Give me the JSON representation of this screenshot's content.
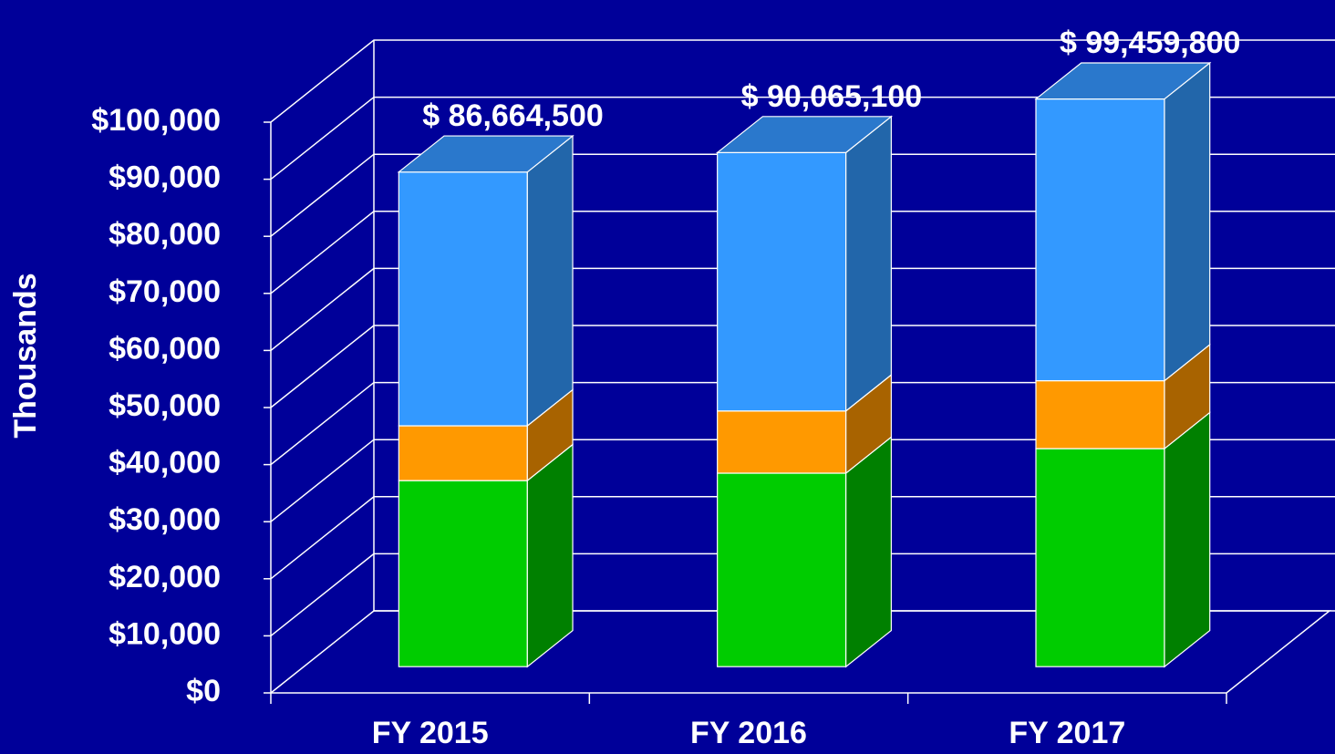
{
  "chart_data": {
    "type": "bar",
    "stacked": true,
    "three_d": true,
    "y_label": "Thousands",
    "categories": [
      "FY 2015",
      "FY 2016",
      "FY 2017"
    ],
    "series": [
      {
        "color": "#00cc00",
        "side_color": "#008000",
        "values": [
          32600,
          33900,
          38200
        ]
      },
      {
        "color": "#ff9900",
        "side_color": "#a86300",
        "values": [
          9600,
          10900,
          11900
        ]
      },
      {
        "color": "#3399ff",
        "side_color": "#2266aa",
        "top_color": "#2a78cc",
        "values": [
          44464.5,
          45265.1,
          49359.8
        ]
      }
    ],
    "totals": {
      "values": [
        86664.5,
        90065.1,
        99459.8
      ],
      "value_labels": [
        "$ 86,664,500",
        "$ 90,065,100",
        "$ 99,459,800"
      ]
    },
    "ylim": [
      0,
      100000
    ],
    "yticks": [
      {
        "value": 0,
        "label": "$0"
      },
      {
        "value": 10000,
        "label": "$10,000"
      },
      {
        "value": 20000,
        "label": "$20,000"
      },
      {
        "value": 30000,
        "label": "$30,000"
      },
      {
        "value": 40000,
        "label": "$40,000"
      },
      {
        "value": 50000,
        "label": "$50,000"
      },
      {
        "value": 60000,
        "label": "$60,000"
      },
      {
        "value": 70000,
        "label": "$70,000"
      },
      {
        "value": 80000,
        "label": "$80,000"
      },
      {
        "value": 90000,
        "label": "$90,000"
      },
      {
        "value": 100000,
        "label": "$100,000"
      }
    ],
    "grid": true
  }
}
